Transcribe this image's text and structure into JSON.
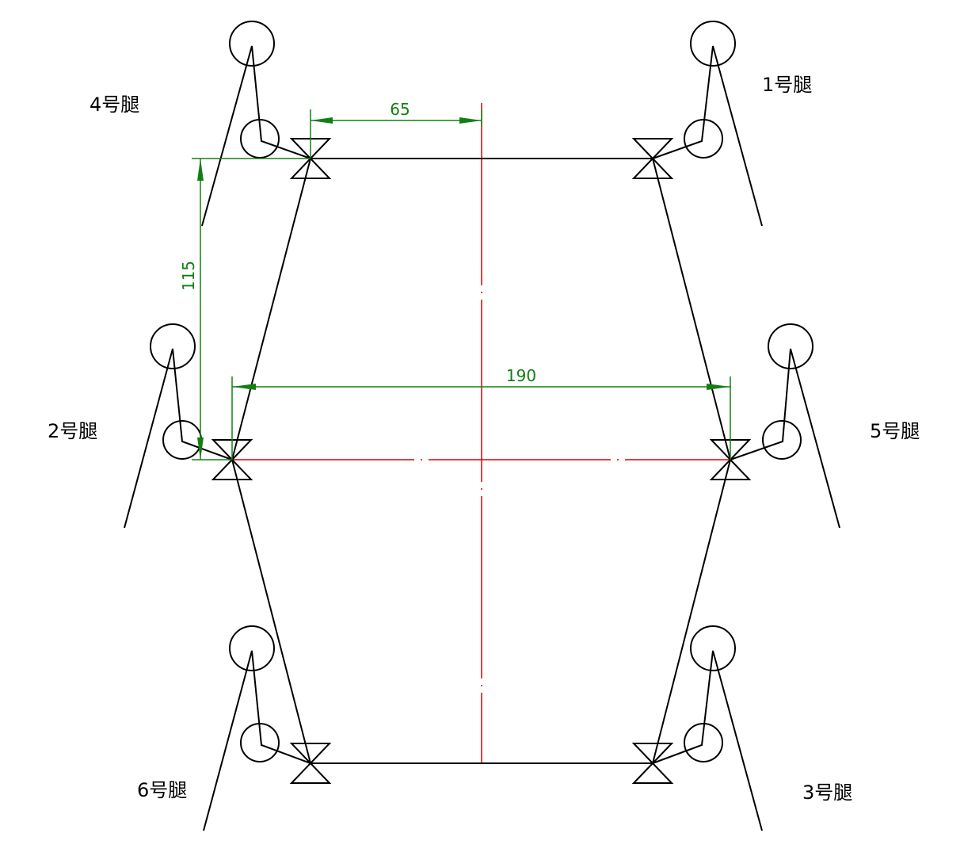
{
  "legs": [
    {
      "label": "1号腿"
    },
    {
      "label": "2号腿"
    },
    {
      "label": "3号腿"
    },
    {
      "label": "4号腿"
    },
    {
      "label": "5号腿"
    },
    {
      "label": "6号腿"
    }
  ],
  "dimensions": {
    "half_width_top": "65",
    "total_width_middle": "190",
    "vertical_spacing": "115"
  },
  "colors": {
    "outline": "#000000",
    "centerline": "#e00000",
    "dimension": "#108010"
  }
}
